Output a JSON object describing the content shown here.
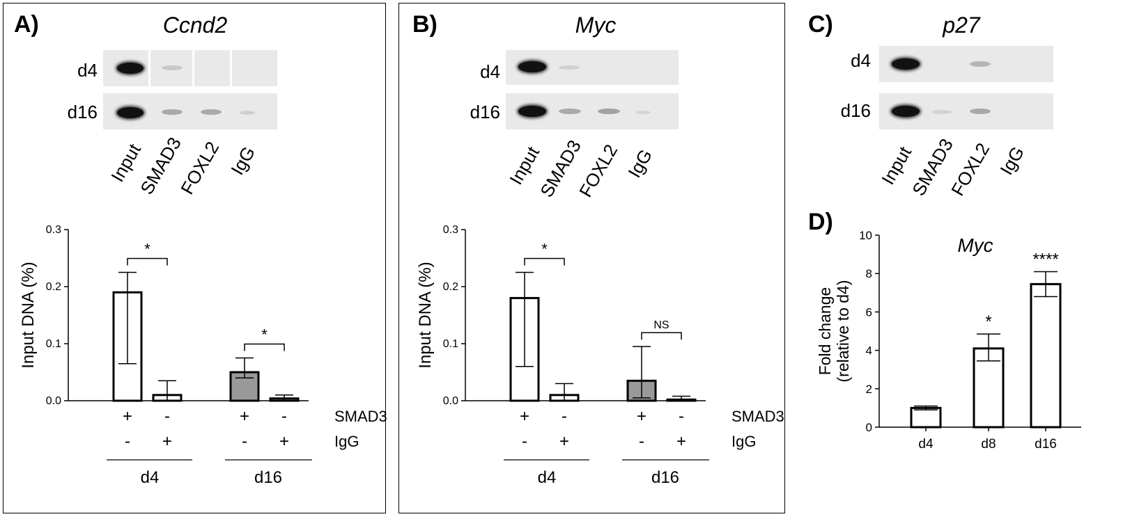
{
  "panels": [
    {
      "id": "A",
      "label": "A)",
      "gene": "Ccnd2"
    },
    {
      "id": "B",
      "label": "B)",
      "gene": "Myc"
    },
    {
      "id": "C",
      "label": "C)",
      "gene": "p27"
    },
    {
      "id": "D",
      "label": "D)",
      "gene": "Myc"
    }
  ],
  "gel": {
    "rows": [
      "d4",
      "d16"
    ],
    "lanes": [
      "Input",
      "SMAD3",
      "FOXL2",
      "IgG"
    ]
  },
  "chip_axis": {
    "ylabel": "Input DNA (%)",
    "ticks": [
      "0.0",
      "0.1",
      "0.2",
      "0.3"
    ]
  },
  "matrix": {
    "row1_label": "SMAD3",
    "row2_label": "IgG",
    "plus": "+",
    "minus": "-",
    "groups": [
      "d4",
      "d16"
    ]
  },
  "chart_data": [
    {
      "type": "bar",
      "panel": "A",
      "gene": "Ccnd2",
      "ylabel": "Input DNA (%)",
      "ylim": [
        0,
        0.3
      ],
      "categories": [
        "d4 SMAD3",
        "d4 IgG",
        "d16 SMAD3",
        "d16 IgG"
      ],
      "values": [
        0.19,
        0.01,
        0.05,
        0.004
      ],
      "errors": [
        [
          0.065,
          0.225
        ],
        [
          0.0,
          0.035
        ],
        [
          0.04,
          0.075
        ],
        [
          0.0,
          0.01
        ]
      ],
      "fills": [
        "#ffffff",
        "#ffffff",
        "#999999",
        "#cccccc"
      ],
      "significance": [
        {
          "label": "*",
          "between": [
            0,
            1
          ]
        },
        {
          "label": "*",
          "between": [
            2,
            3
          ]
        }
      ]
    },
    {
      "type": "bar",
      "panel": "B",
      "gene": "Myc",
      "ylabel": "Input DNA (%)",
      "ylim": [
        0,
        0.3
      ],
      "categories": [
        "d4 SMAD3",
        "d4 IgG",
        "d16 SMAD3",
        "d16 IgG"
      ],
      "values": [
        0.18,
        0.01,
        0.035,
        0.002
      ],
      "errors": [
        [
          0.06,
          0.225
        ],
        [
          0.0,
          0.03
        ],
        [
          0.005,
          0.095
        ],
        [
          0.0,
          0.008
        ]
      ],
      "fills": [
        "#ffffff",
        "#ffffff",
        "#999999",
        "#cccccc"
      ],
      "significance": [
        {
          "label": "*",
          "between": [
            0,
            1
          ]
        },
        {
          "label": "NS",
          "between": [
            2,
            3
          ]
        }
      ]
    },
    {
      "type": "bar",
      "panel": "D",
      "gene": "Myc",
      "ylabel": "Fold change\n(relative to d4)",
      "ylim": [
        0,
        10
      ],
      "yticks": [
        "0",
        "2",
        "4",
        "6",
        "8",
        "10"
      ],
      "categories": [
        "d4",
        "d8",
        "d16"
      ],
      "values": [
        1.0,
        4.1,
        7.45
      ],
      "errors": [
        [
          0.9,
          1.1
        ],
        [
          3.45,
          4.85
        ],
        [
          6.8,
          8.1
        ]
      ],
      "annotations": [
        "",
        "*",
        "****"
      ]
    }
  ]
}
